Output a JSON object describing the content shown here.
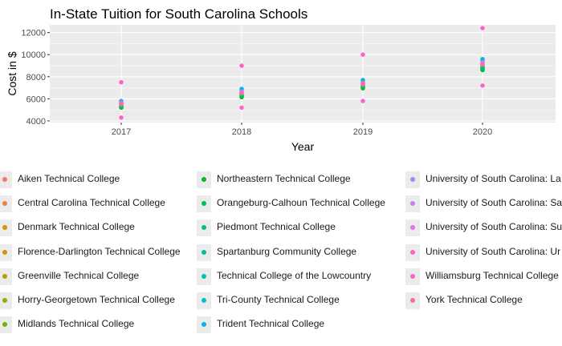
{
  "chart_data": {
    "type": "scatter",
    "title": "In-State Tuition for South Carolina Schools",
    "xlabel": "Year",
    "ylabel": "Cost in $",
    "x_ticks": [
      "2017",
      "2018",
      "2019",
      "2020"
    ],
    "y_ticks": [
      "4000",
      "6000",
      "8000",
      "10000",
      "12000"
    ],
    "ylim": [
      3850,
      12700
    ],
    "grid": true,
    "legend_position": "bottom",
    "series": [
      {
        "name": "Aiken Technical College",
        "color": "#F8766D",
        "values": [
          5200,
          6200,
          7000,
          8700
        ]
      },
      {
        "name": "Central Carolina Technical College",
        "color": "#EC823C",
        "values": [
          5300,
          6300,
          7100,
          8800
        ]
      },
      {
        "name": "Denmark Technical College",
        "color": "#DD8D00",
        "values": [
          5250,
          6250,
          7050,
          8750
        ]
      },
      {
        "name": "Florence-Darlington Technical College",
        "color": "#CA9700",
        "values": [
          5350,
          6350,
          7150,
          8850
        ]
      },
      {
        "name": "Greenville Technical College",
        "color": "#B3A000",
        "values": [
          5400,
          6400,
          7200,
          8900
        ]
      },
      {
        "name": "Horry-Georgetown Technical College",
        "color": "#96A900",
        "values": [
          5300,
          6300,
          7100,
          8800
        ]
      },
      {
        "name": "Midlands Technical College",
        "color": "#6FB000",
        "values": [
          5250,
          6200,
          7000,
          8650
        ]
      },
      {
        "name": "Northeastern Technical College",
        "color": "#00B81F",
        "values": [
          5200,
          6150,
          6950,
          8600
        ]
      },
      {
        "name": "Orangeburg-Calhoun Technical College",
        "color": "#00BC59",
        "values": [
          5300,
          6300,
          7100,
          8750
        ]
      },
      {
        "name": "Piedmont Technical College",
        "color": "#00BF7D",
        "values": [
          5350,
          6350,
          7150,
          8850
        ]
      },
      {
        "name": "Spartanburg Community College",
        "color": "#00C09B",
        "values": [
          5500,
          6500,
          7300,
          9000
        ]
      },
      {
        "name": "Technical College of the Lowcountry",
        "color": "#00BFB5",
        "values": [
          5550,
          6550,
          7350,
          9100
        ]
      },
      {
        "name": "Tri-County Technical College",
        "color": "#00BCCD",
        "values": [
          5700,
          6800,
          7500,
          9400
        ]
      },
      {
        "name": "Trident Technical College",
        "color": "#00B5E2",
        "values": [
          5800,
          6900,
          7700,
          9600
        ]
      },
      {
        "name": "University of South Carolina: La",
        "color": "#9590FF",
        "values": [
          5600,
          6600,
          7400,
          9200
        ]
      },
      {
        "name": "University of South Carolina: Sa",
        "color": "#C77CFF",
        "values": [
          5650,
          6650,
          7450,
          9300
        ]
      },
      {
        "name": "University of South Carolina: Su",
        "color": "#E76BF3",
        "values": [
          5600,
          6600,
          7400,
          9250
        ]
      },
      {
        "name": "University of South Carolina: Ur",
        "color": "#FF62BC",
        "values": [
          7500,
          9000,
          10000,
          12400
        ]
      },
      {
        "name": "Williamsburg Technical College",
        "color": "#FD61D1",
        "values": [
          4300,
          5200,
          5800,
          7200
        ]
      },
      {
        "name": "York Technical College",
        "color": "#FF6C91",
        "values": [
          5500,
          6500,
          7300,
          9100
        ]
      }
    ]
  }
}
